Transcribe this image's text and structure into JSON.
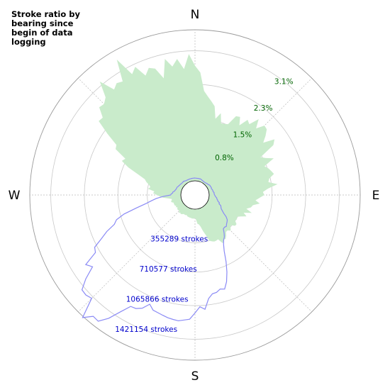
{
  "chart_data": {
    "type": "polar-area",
    "title_lines": [
      "Stroke ratio by",
      "bearing since",
      "begin of data",
      "logging"
    ],
    "directions": {
      "north": "N",
      "east": "E",
      "south": "S",
      "west": "W"
    },
    "ratio_ticks": [
      "0.8%",
      "1.5%",
      "2.3%",
      "3.1%"
    ],
    "ratio_tick_values": [
      0.8,
      1.5,
      2.3,
      3.1
    ],
    "ratio_max": 3.6,
    "count_ticks": [
      "355289 strokes",
      "710577 strokes",
      "1065866 strokes",
      "1421154 strokes"
    ],
    "count_tick_values": [
      355289,
      710577,
      1065866,
      1421154
    ],
    "count_max": 1670000,
    "grid": true,
    "series": [
      {
        "kind": "ratio",
        "fill_color": "#c9ebcb",
        "bearing_deg": [
          0,
          10,
          20,
          30,
          40,
          50,
          60,
          70,
          80,
          90,
          100,
          110,
          120,
          130,
          140,
          150,
          160,
          170,
          180,
          190,
          200,
          210,
          220,
          230,
          240,
          250,
          260,
          270,
          280,
          290,
          300,
          310,
          320,
          330,
          340,
          350
        ],
        "values": [
          2.75,
          1.95,
          1.45,
          1.75,
          1.95,
          2.0,
          1.6,
          1.55,
          1.55,
          1.3,
          1.1,
          0.95,
          0.8,
          0.85,
          0.9,
          0.9,
          0.85,
          0.45,
          0.22,
          0.2,
          0.2,
          0.2,
          0.22,
          0.2,
          0.18,
          0.22,
          0.25,
          0.55,
          0.8,
          1.1,
          1.85,
          2.8,
          3.0,
          3.3,
          2.9,
          2.8
        ]
      },
      {
        "kind": "count",
        "line_color": "#8a8af5",
        "bearing_deg": [
          0,
          10,
          20,
          30,
          40,
          50,
          60,
          70,
          80,
          90,
          100,
          110,
          120,
          130,
          140,
          150,
          160,
          170,
          180,
          190,
          200,
          210,
          220,
          230,
          240,
          250,
          260,
          270,
          280,
          290,
          300,
          310,
          320,
          330,
          340,
          350
        ],
        "values": [
          30000,
          30000,
          30000,
          20000,
          20000,
          30000,
          40000,
          40000,
          50000,
          60000,
          90000,
          130000,
          190000,
          320000,
          350000,
          450000,
          870000,
          980000,
          1180000,
          1180000,
          1190000,
          1310000,
          1640000,
          1460000,
          1120000,
          830000,
          420000,
          110000,
          80000,
          60000,
          50000,
          40000,
          40000,
          30000,
          30000,
          30000
        ]
      }
    ],
    "ratio_label_color": "#006400",
    "count_label_color": "#0000cc"
  }
}
